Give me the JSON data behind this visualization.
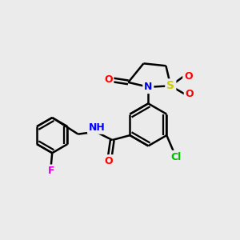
{
  "bg_color": "#ebebeb",
  "bond_color": "#000000",
  "bond_width": 1.8,
  "atom_colors": {
    "C": "#000000",
    "N": "#0000ff",
    "O": "#ff0000",
    "S": "#cccc00",
    "Cl": "#00bb00",
    "F": "#dd00dd",
    "H": "#555555"
  },
  "font_size": 9,
  "figsize": [
    3.0,
    3.0
  ],
  "dpi": 100
}
